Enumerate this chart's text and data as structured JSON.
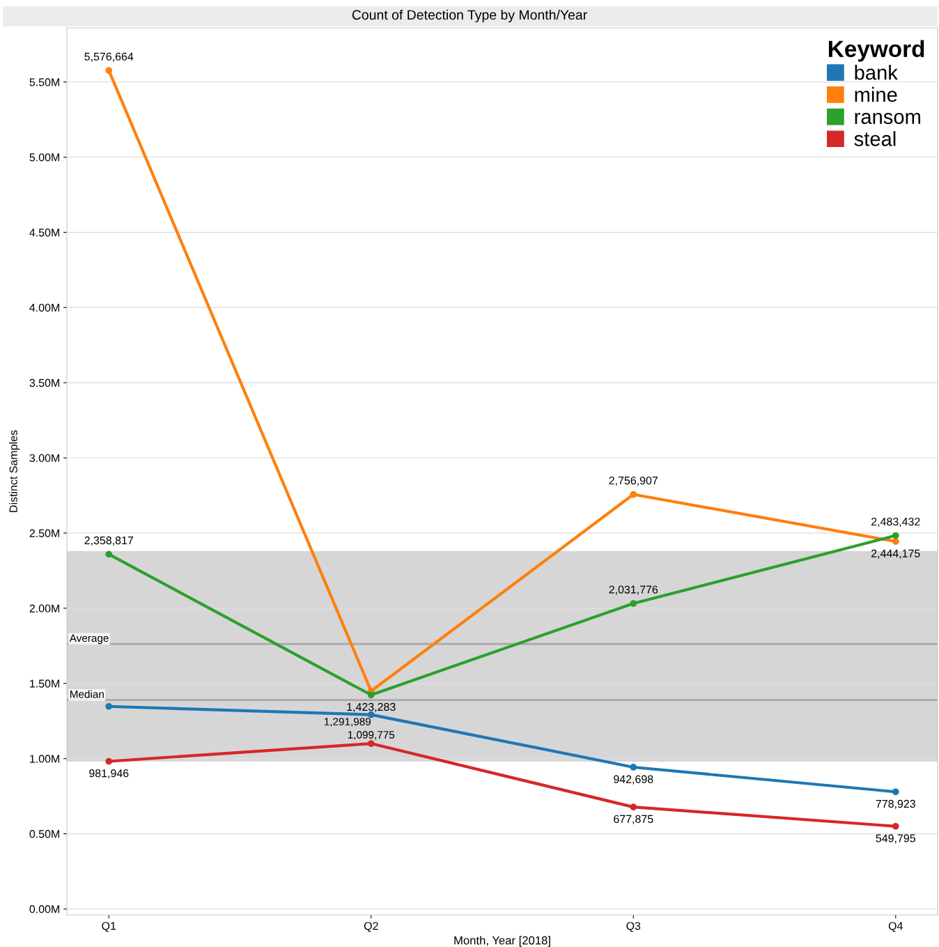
{
  "chart_data": {
    "type": "line",
    "title": "Count of Detection Type by Month/Year",
    "xlabel": "Month, Year [2018]",
    "ylabel": "Distinct Samples",
    "legend_title": "Keyword",
    "legend": "top right",
    "grid": "y",
    "marker": "circle",
    "line_style": "solid",
    "categories": [
      "Q1",
      "Q2",
      "Q3",
      "Q4"
    ],
    "series": [
      {
        "name": "bank",
        "color": "#1f77b4",
        "values": [
          1347000,
          1291989,
          942698,
          778923
        ],
        "value_labels": [
          null,
          "1,291,989",
          "942,698",
          "778,923"
        ]
      },
      {
        "name": "mine",
        "color": "#ff7f0e",
        "values": [
          5576664,
          1449000,
          2756907,
          2444175
        ],
        "value_labels": [
          "5,576,664",
          null,
          "2,756,907",
          "2,444,175"
        ]
      },
      {
        "name": "ransom",
        "color": "#2ca02c",
        "values": [
          2358817,
          1423283,
          2031776,
          2483432
        ],
        "value_labels": [
          "2,358,817",
          "1,423,283",
          "2,031,776",
          "2,483,432"
        ]
      },
      {
        "name": "steal",
        "color": "#d62728",
        "values": [
          981946,
          1099775,
          677875,
          549795
        ],
        "value_labels": [
          "981,946",
          "1,099,775",
          "677,875",
          "549,795"
        ]
      }
    ],
    "ylim": [
      -40000,
      5860000
    ],
    "yticks": [
      {
        "value": 0,
        "label": "0.00M"
      },
      {
        "value": 500000,
        "label": "0.50M"
      },
      {
        "value": 1000000,
        "label": "1.00M"
      },
      {
        "value": 1500000,
        "label": "1.50M"
      },
      {
        "value": 2000000,
        "label": "2.00M"
      },
      {
        "value": 2500000,
        "label": "2.50M"
      },
      {
        "value": 3000000,
        "label": "3.00M"
      },
      {
        "value": 3500000,
        "label": "3.50M"
      },
      {
        "value": 4000000,
        "label": "4.00M"
      },
      {
        "value": 4500000,
        "label": "4.50M"
      },
      {
        "value": 5000000,
        "label": "5.00M"
      },
      {
        "value": 5500000,
        "label": "5.50M"
      }
    ],
    "ref_lines": [
      {
        "axis": "y",
        "value": 1762000,
        "label": "Average",
        "color": "#a8a8a8"
      },
      {
        "axis": "y",
        "value": 1389000,
        "label": "Median",
        "color": "#a8a8a8"
      }
    ],
    "bands": [
      {
        "axis": "y",
        "from": 980000,
        "to": 2380000,
        "color": "#d6d6d6"
      }
    ]
  }
}
